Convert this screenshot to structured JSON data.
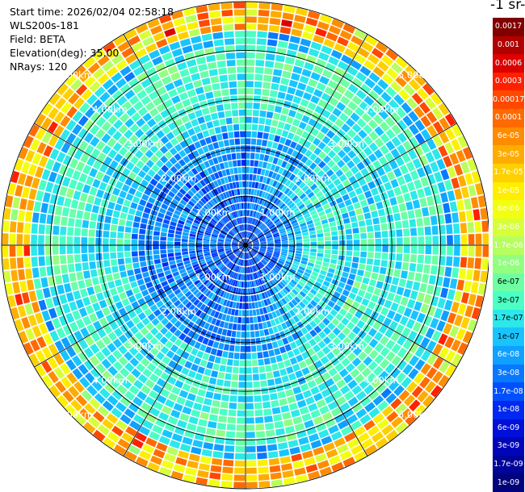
{
  "header": {
    "start_time": "Start time: 2026/02/04 02:58:18",
    "instrument": "WLS200s-181",
    "field": "Field: BETA",
    "elevation": "Elevation(deg): 35.00",
    "nrays": "NRays: 120"
  },
  "colorbar": {
    "unit_fragment": "-1 sr-",
    "labels": [
      "0.0017",
      "0.001",
      "0.0006",
      "0.0003",
      "0.00017",
      "0.0001",
      "6e-05",
      "3e-05",
      "1.7e-05",
      "1e-05",
      "6e-06",
      "3e-06",
      "1.7e-06",
      "1e-06",
      "6e-07",
      "3e-07",
      "1.7e-07",
      "1e-07",
      "6e-08",
      "3e-08",
      "1.7e-08",
      "1e-08",
      "6e-09",
      "3e-09",
      "1.7e-09",
      "1e-09"
    ],
    "colors": [
      "#800000",
      "#b00000",
      "#dc0000",
      "#ff2000",
      "#ff4800",
      "#ff6a00",
      "#ff8c00",
      "#ffac00",
      "#ffd000",
      "#ffee00",
      "#f2ff10",
      "#d6ff3a",
      "#b6ff5e",
      "#92ff80",
      "#6effa2",
      "#4cffc4",
      "#2ce8ea",
      "#18c4ff",
      "#10a0ff",
      "#0878ff",
      "#0050ff",
      "#0028f0",
      "#0010d8",
      "#0006b8",
      "#000498",
      "#00037c"
    ]
  },
  "chart_data": {
    "type": "heatmap",
    "projection": "polar PPI",
    "field": "BETA",
    "elevation_deg": 35.0,
    "n_rays": 120,
    "range_rings_km": [
      1.0,
      2.0,
      3.0,
      4.0,
      5.0
    ],
    "ring_labels": [
      "1.00km",
      "2.00km",
      "3.00km",
      "4.00km",
      "5.00km"
    ],
    "azimuth_spokes_deg": [
      0,
      30,
      60,
      90,
      120,
      150,
      180,
      210,
      240,
      270,
      300,
      330
    ],
    "max_range_km": 5.0,
    "scale": "log",
    "color_range": [
      1e-09,
      0.0017
    ],
    "pattern": "low backscatter (~1e-08–1e-07, blue) within 2 km; moderate (~1e-07–3e-07, cyan) ring 2.5–4 km; higher (~1e-06, green/yellow) arc to the east at 1–2 km; highest (~3e-05–1e-04, orange/red) scattered gates at outer edge 4.5–5 km"
  }
}
